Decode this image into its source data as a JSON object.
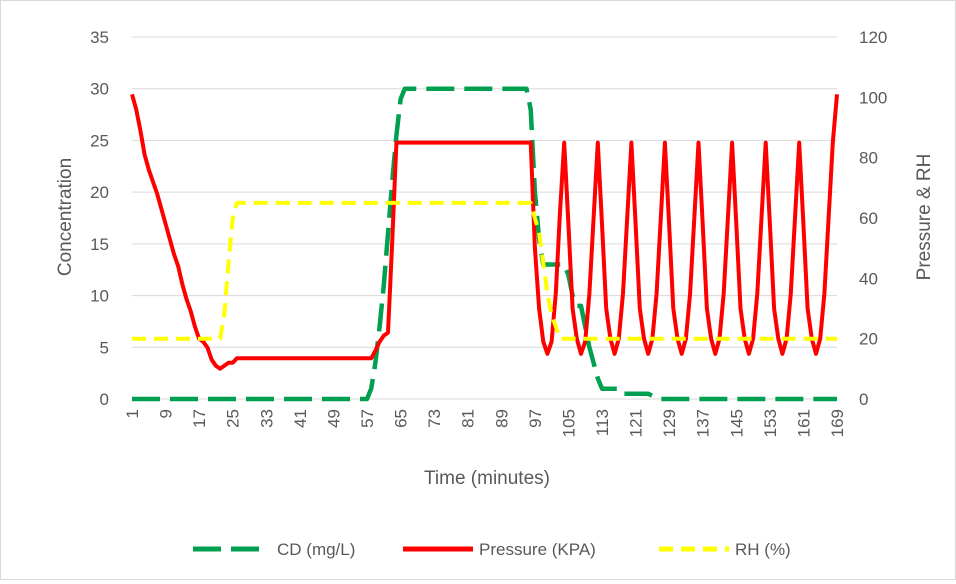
{
  "colors": {
    "gridline": "#d9d9d9",
    "text": "#595959",
    "cd": "#00a050",
    "pressure": "#ff0000",
    "rh": "#ffff00"
  },
  "chart_data": {
    "type": "line",
    "title": "",
    "xlabel": "Time (minutes)",
    "ylabel_left": "Concentration",
    "ylabel_right": "Pressure & RH",
    "x_tick_labels": [
      "1",
      "9",
      "17",
      "25",
      "33",
      "41",
      "49",
      "57",
      "65",
      "73",
      "81",
      "89",
      "97",
      "105",
      "113",
      "121",
      "129",
      "137",
      "145",
      "153",
      "161",
      "169"
    ],
    "x_range": [
      1,
      169
    ],
    "y_left": {
      "min": 0,
      "max": 35,
      "ticks": [
        "0",
        "5",
        "10",
        "15",
        "20",
        "25",
        "30",
        "35"
      ]
    },
    "y_right": {
      "min": 0,
      "max": 120,
      "ticks": [
        "0",
        "20",
        "40",
        "60",
        "80",
        "100",
        "120"
      ]
    },
    "grid": "horizontal",
    "legend_position": "bottom",
    "series": [
      {
        "name": "CD (mg/L)",
        "axis": "left",
        "color": "#00a050",
        "style": "dashed",
        "points": [
          [
            1,
            0
          ],
          [
            57,
            0
          ],
          [
            58,
            1
          ],
          [
            59,
            3.5
          ],
          [
            60,
            7
          ],
          [
            61,
            11
          ],
          [
            62,
            16
          ],
          [
            63,
            21
          ],
          [
            64,
            25.5
          ],
          [
            65,
            29
          ],
          [
            66,
            30
          ],
          [
            95,
            30
          ],
          [
            96,
            28
          ],
          [
            97,
            20
          ],
          [
            98,
            15.5
          ],
          [
            99,
            13
          ],
          [
            104,
            13
          ],
          [
            105,
            12
          ],
          [
            106,
            10
          ],
          [
            107,
            9
          ],
          [
            108,
            9
          ],
          [
            109,
            7
          ],
          [
            110,
            5
          ],
          [
            111,
            3.5
          ],
          [
            112,
            2
          ],
          [
            113,
            1
          ],
          [
            117,
            1
          ],
          [
            118,
            0.5
          ],
          [
            124,
            0.5
          ],
          [
            125,
            0.3
          ],
          [
            127,
            0
          ],
          [
            169,
            0
          ]
        ]
      },
      {
        "name": "Pressure (KPA)",
        "axis": "right",
        "color": "#ff0000",
        "style": "solid",
        "points": [
          [
            1,
            101
          ],
          [
            2,
            96
          ],
          [
            3,
            89
          ],
          [
            4,
            81
          ],
          [
            5,
            76
          ],
          [
            6,
            72
          ],
          [
            7,
            68
          ],
          [
            8,
            63
          ],
          [
            9,
            58
          ],
          [
            10,
            53
          ],
          [
            11,
            48
          ],
          [
            12,
            44
          ],
          [
            13,
            38
          ],
          [
            14,
            33
          ],
          [
            15,
            29
          ],
          [
            16,
            24
          ],
          [
            17,
            20
          ],
          [
            18,
            19
          ],
          [
            19,
            17
          ],
          [
            20,
            13
          ],
          [
            21,
            11
          ],
          [
            22,
            10
          ],
          [
            23,
            11
          ],
          [
            24,
            12
          ],
          [
            25,
            12
          ],
          [
            26,
            13.5
          ],
          [
            58,
            13.5
          ],
          [
            59,
            16
          ],
          [
            60,
            19
          ],
          [
            61,
            21
          ],
          [
            62,
            22
          ],
          [
            63,
            52
          ],
          [
            64,
            85
          ],
          [
            96,
            85
          ],
          [
            97,
            50
          ],
          [
            98,
            30
          ],
          [
            99,
            19
          ],
          [
            100,
            15
          ],
          [
            101,
            19
          ],
          [
            102,
            35
          ],
          [
            103,
            62
          ],
          [
            104,
            85
          ],
          [
            105,
            58
          ],
          [
            106,
            30
          ],
          [
            107,
            20
          ],
          [
            108,
            15
          ],
          [
            109,
            19
          ],
          [
            110,
            35
          ],
          [
            111,
            60
          ],
          [
            112,
            85
          ],
          [
            113,
            58
          ],
          [
            114,
            30
          ],
          [
            115,
            20
          ],
          [
            116,
            15
          ],
          [
            117,
            20
          ],
          [
            118,
            35
          ],
          [
            119,
            60
          ],
          [
            120,
            85
          ],
          [
            121,
            58
          ],
          [
            122,
            30
          ],
          [
            123,
            20
          ],
          [
            124,
            15
          ],
          [
            125,
            20
          ],
          [
            126,
            35
          ],
          [
            127,
            60
          ],
          [
            128,
            85
          ],
          [
            129,
            58
          ],
          [
            130,
            30
          ],
          [
            131,
            20
          ],
          [
            132,
            15
          ],
          [
            133,
            20
          ],
          [
            134,
            35
          ],
          [
            135,
            60
          ],
          [
            136,
            85
          ],
          [
            137,
            58
          ],
          [
            138,
            30
          ],
          [
            139,
            20
          ],
          [
            140,
            15
          ],
          [
            141,
            20
          ],
          [
            142,
            35
          ],
          [
            143,
            60
          ],
          [
            144,
            85
          ],
          [
            145,
            58
          ],
          [
            146,
            30
          ],
          [
            147,
            20
          ],
          [
            148,
            15
          ],
          [
            149,
            20
          ],
          [
            150,
            35
          ],
          [
            151,
            60
          ],
          [
            152,
            85
          ],
          [
            153,
            58
          ],
          [
            154,
            30
          ],
          [
            155,
            20
          ],
          [
            156,
            15
          ],
          [
            157,
            20
          ],
          [
            158,
            35
          ],
          [
            159,
            60
          ],
          [
            160,
            85
          ],
          [
            161,
            58
          ],
          [
            162,
            30
          ],
          [
            163,
            20
          ],
          [
            164,
            15
          ],
          [
            165,
            20
          ],
          [
            166,
            35
          ],
          [
            167,
            60
          ],
          [
            168,
            85
          ],
          [
            169,
            101
          ]
        ]
      },
      {
        "name": "RH (%)",
        "axis": "right",
        "color": "#ffff00",
        "style": "dashed",
        "points": [
          [
            1,
            20
          ],
          [
            22,
            20
          ],
          [
            23,
            28
          ],
          [
            24,
            45
          ],
          [
            25,
            60
          ],
          [
            26,
            65
          ],
          [
            96,
            65
          ],
          [
            97,
            60
          ],
          [
            98,
            55
          ],
          [
            99,
            45
          ],
          [
            100,
            35
          ],
          [
            101,
            28
          ],
          [
            102,
            24
          ],
          [
            103,
            20
          ],
          [
            169,
            20
          ]
        ]
      }
    ]
  }
}
